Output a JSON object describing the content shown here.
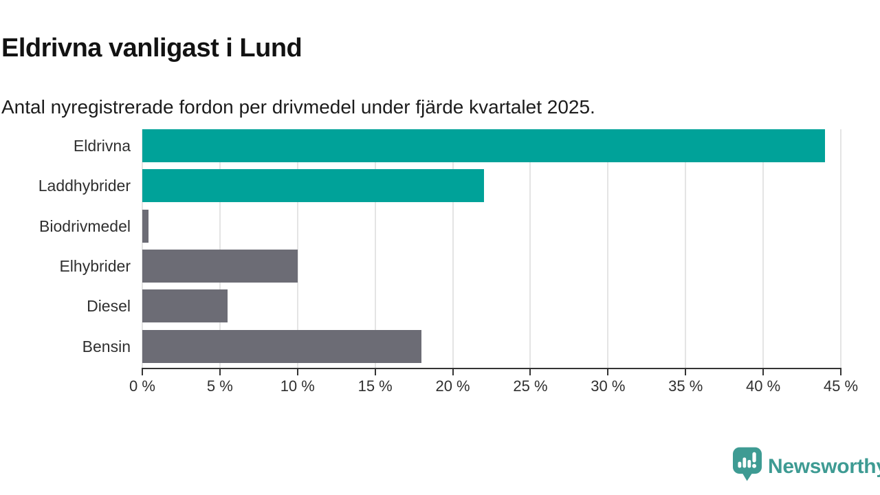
{
  "title": "Eldrivna vanligast i Lund",
  "subtitle": "Antal nyregistrerade fordon per drivmedel under fjärde kvartalet 2025.",
  "chart_data": {
    "type": "bar",
    "orientation": "horizontal",
    "title": "Eldrivna vanligast i Lund",
    "subtitle": "Antal nyregistrerade fordon per drivmedel under fjärde kvartalet 2025.",
    "categories": [
      "Eldrivna",
      "Laddhybrider",
      "Biodrivmedel",
      "Elhybrider",
      "Diesel",
      "Bensin"
    ],
    "values": [
      44,
      22,
      0.4,
      10,
      5.5,
      18
    ],
    "unit": "%",
    "bar_colors": [
      "#00a299",
      "#00a299",
      "#6c6c75",
      "#6c6c75",
      "#6c6c75",
      "#6c6c75"
    ],
    "xlim": [
      0,
      45
    ],
    "xticks": [
      0,
      5,
      10,
      15,
      20,
      25,
      30,
      35,
      40,
      45
    ],
    "tick_suffix": " %",
    "grid": "vertical",
    "legend": "none",
    "value_labels": "none"
  },
  "colors": {
    "accent_teal": "#00a299",
    "neutral_gray": "#6c6c75",
    "axis": "#333333",
    "gridline": "#e4e4e4",
    "brand_teal": "#3e9b93"
  },
  "branding": {
    "logo_text": "Newsworthy",
    "logo_icon": "newsworthy-speech-bubble-bar-chart-icon"
  }
}
